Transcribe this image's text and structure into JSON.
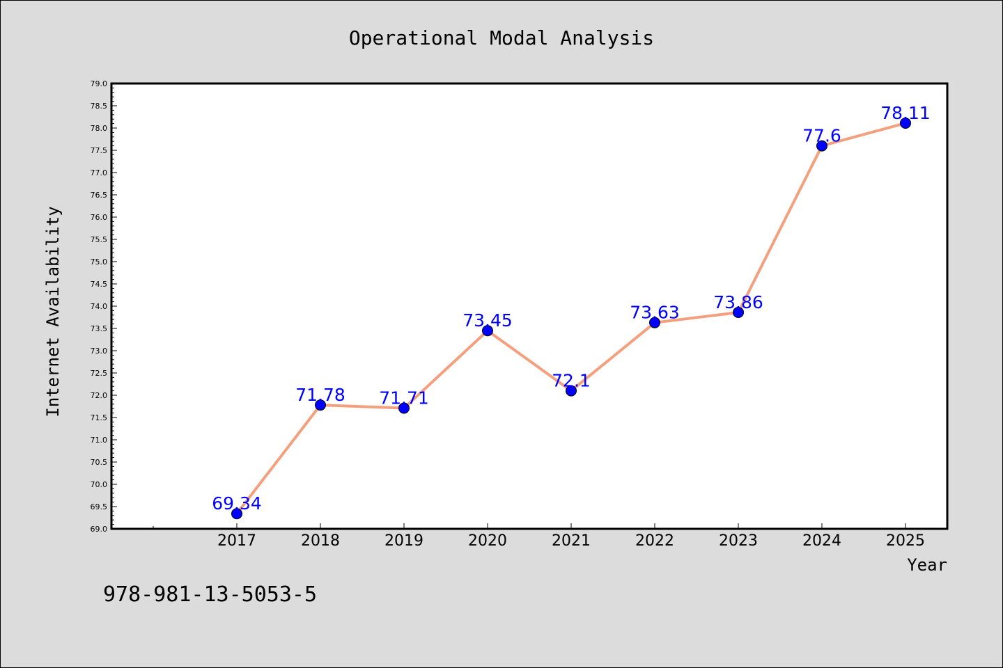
{
  "chart_data": {
    "type": "line",
    "title": "Operational Modal Analysis",
    "xlabel": "Year",
    "ylabel": "Internet Availability",
    "categories": [
      "2017",
      "2018",
      "2019",
      "2020",
      "2021",
      "2022",
      "2023",
      "2024",
      "2025"
    ],
    "series": [
      {
        "values": [
          69.34,
          71.78,
          71.71,
          73.45,
          72.1,
          73.63,
          73.86,
          77.6,
          78.11
        ],
        "data_labels": [
          "69.34",
          "71.78",
          "71.71",
          "73.45",
          "72.1",
          "73.63",
          "73.86",
          "77.6",
          "78.11"
        ],
        "line_color": "#f4a07e",
        "marker_color": "#0000ff"
      }
    ],
    "ylim": [
      69.0,
      79.0
    ],
    "yticks": [
      "69.0",
      "69.5",
      "70.0",
      "70.5",
      "71.0",
      "71.5",
      "72.0",
      "72.5",
      "73.0",
      "73.5",
      "74.0",
      "74.5",
      "75.0",
      "75.5",
      "76.0",
      "76.5",
      "77.0",
      "77.5",
      "78.0",
      "78.5",
      "79.0"
    ],
    "grid": false,
    "legend": "none"
  },
  "annotation": {
    "text": "978-981-13-5053-5"
  },
  "colors": {
    "background": "#dcdcdc",
    "plot_background": "#ffffff",
    "line": "#f4a07e",
    "marker": "#0000ff",
    "label": "#0000ff"
  }
}
